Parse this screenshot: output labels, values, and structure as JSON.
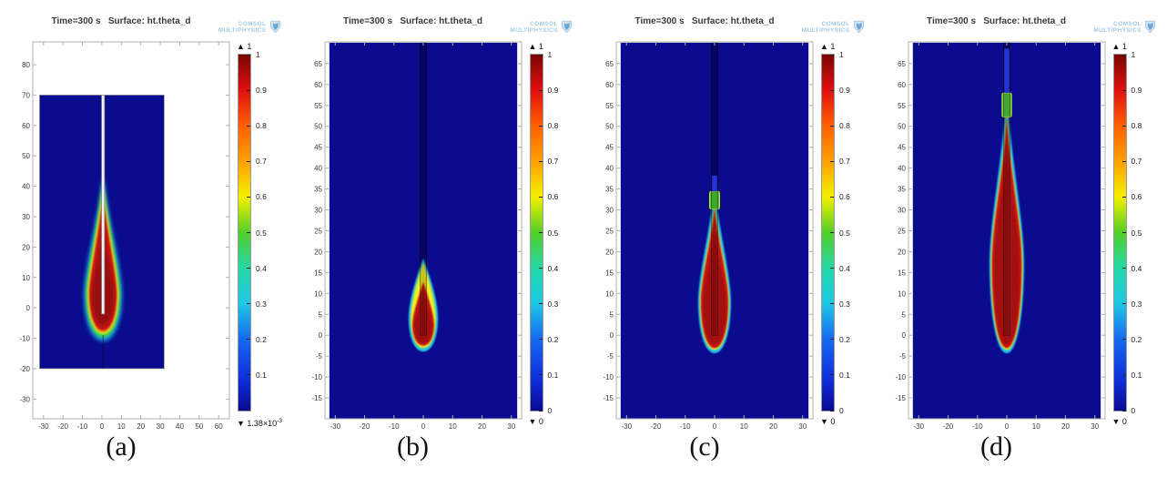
{
  "logo": {
    "line1": "COMSOL",
    "line2": "MULTIPHYSICS"
  },
  "colors": {
    "domain_blue": "#0a0b8e",
    "frame": "#b0b0b0",
    "tick_text": "#3a3a3a",
    "logo_blue": "#a6cbe4",
    "needle_gray": "#f2f2f2",
    "jet_stops": [
      [
        "0%",
        "#7a0403"
      ],
      [
        "10%",
        "#e01010"
      ],
      [
        "20%",
        "#ff6000"
      ],
      [
        "30%",
        "#ffa000"
      ],
      [
        "40%",
        "#f4f000"
      ],
      [
        "50%",
        "#52cf28"
      ],
      [
        "60%",
        "#22d8a8"
      ],
      [
        "70%",
        "#1ec8e6"
      ],
      [
        "80%",
        "#1668f0"
      ],
      [
        "92%",
        "#0e2ad8"
      ],
      [
        "100%",
        "#0a0b8e"
      ]
    ]
  },
  "chart_data": [
    {
      "type": "heatmap",
      "id": "a",
      "caption": "(a)",
      "title": "Time=300 s   Surface: ht.theta_d",
      "xlim": [
        -35.5,
        65.5
      ],
      "ylim": [
        -36.5,
        87.5
      ],
      "xticks": [
        -30,
        -20,
        -10,
        0,
        10,
        20,
        30,
        40,
        50,
        60
      ],
      "yticks": [
        80,
        70,
        60,
        50,
        40,
        30,
        20,
        10,
        0,
        -10,
        -20,
        -30
      ],
      "domain": {
        "x": [
          -32,
          32
        ],
        "y": [
          -20,
          70
        ]
      },
      "domain_stroke": true,
      "plume_cx": 0.6,
      "needle": {
        "style": "rod",
        "x": 0.6,
        "w": 1.5,
        "y_top": 70,
        "y_bottom": -2
      },
      "axis_line": {
        "x": 0.6,
        "y1": -9,
        "y2": -20
      },
      "plume_layers": [
        {
          "color": "#1ab5e8",
          "tip": 44.0,
          "bottom": -11.0,
          "r": 9.8,
          "y_rmax": 4.5,
          "blur": "L",
          "k": 0.3,
          "opacity": 0.9
        },
        {
          "color": "#35d23c",
          "tip": 42.0,
          "bottom": -9.6,
          "r": 8.7,
          "y_rmax": 4.5,
          "blur": "M",
          "k": 0.3,
          "opacity": 1
        },
        {
          "color": "#f2ee20",
          "tip": 40.2,
          "bottom": -8.6,
          "r": 7.9,
          "y_rmax": 4.5,
          "blur": "M",
          "k": 0.3,
          "opacity": 1
        },
        {
          "color": "#f08018",
          "tip": 38.6,
          "bottom": -8.0,
          "r": 7.4,
          "y_rmax": 4.5,
          "blur": "S",
          "k": 0.3,
          "opacity": 1
        },
        {
          "color": "#c41616",
          "tip": 36.8,
          "bottom": -7.4,
          "r": 6.9,
          "y_rmax": 4.5,
          "blur": "S",
          "k": 0.3,
          "opacity": 1
        },
        {
          "color": "#900c0c",
          "tip": 27.0,
          "bottom": -5.8,
          "r": 5.5,
          "y_rmax": 4.0,
          "blur": "M",
          "k": 0.3,
          "opacity": 0.85
        }
      ],
      "colorbar": {
        "max_label": "▲ 1",
        "min_label": "▼ 1.38×10",
        "min_exp": "-3",
        "tick_labels": [
          "1",
          "0.9",
          "0.8",
          "0.7",
          "0.6",
          "0.5",
          "0.4",
          "0.3",
          "0.2",
          "0.1"
        ]
      }
    },
    {
      "type": "heatmap",
      "id": "b",
      "caption": "(b)",
      "title": "Time=300 s   Surface: ht.theta_d",
      "xlim": [
        -33.5,
        33.5
      ],
      "ylim": [
        -20,
        70.2
      ],
      "xticks": [
        -30,
        -20,
        -10,
        0,
        10,
        20,
        30
      ],
      "yticks": [
        65,
        60,
        55,
        50,
        45,
        40,
        35,
        30,
        25,
        20,
        15,
        10,
        5,
        0,
        -5,
        -10,
        -15
      ],
      "domain": {
        "x": [
          -32,
          32
        ],
        "y": [
          -20,
          70
        ]
      },
      "domain_stroke": false,
      "plume_cx": 0,
      "needle": {
        "style": "outline",
        "x": 0,
        "w": 2.2,
        "y_top": 70,
        "y_bottom": 0,
        "dark_to": 20
      },
      "plume_layers": [
        {
          "color": "#23c3e6",
          "tip": 18.4,
          "bottom": -3.9,
          "r": 5.0,
          "y_rmax": 4.0,
          "blur": "S",
          "k": 0.6,
          "opacity": 1
        },
        {
          "color": "#cbe62a",
          "tip": 17.4,
          "bottom": -3.1,
          "r": 4.3,
          "y_rmax": 4.0,
          "blur": "S",
          "k": 0.62,
          "opacity": 1
        },
        {
          "color": "#f2ee20",
          "tip": 16.9,
          "bottom": -2.8,
          "r": 4.0,
          "y_rmax": 3.5,
          "blur": "S",
          "k": 0.62,
          "opacity": 1
        },
        {
          "color": "#c41616",
          "tip": 12.8,
          "bottom": -2.5,
          "r": 3.7,
          "y_rmax": 2.5,
          "blur": "S",
          "k": 0.5,
          "opacity": 1
        },
        {
          "color": "#9b0d0d",
          "tip": 10.5,
          "bottom": -1.8,
          "r": 3.0,
          "y_rmax": 2.0,
          "blur": "S",
          "k": 0.5,
          "opacity": 0.8
        }
      ],
      "colorbar": {
        "max_label": "▲ 1",
        "min_label": "▼ 0",
        "min_exp": "",
        "tick_labels": [
          "1",
          "0.9",
          "0.8",
          "0.7",
          "0.6",
          "0.5",
          "0.4",
          "0.3",
          "0.2",
          "0.1",
          "0"
        ]
      }
    },
    {
      "type": "heatmap",
      "id": "c",
      "caption": "(c)",
      "title": "Time=300 s   Surface: ht.theta_d",
      "xlim": [
        -33.5,
        33.5
      ],
      "ylim": [
        -20,
        70.2
      ],
      "xticks": [
        -30,
        -20,
        -10,
        0,
        10,
        20,
        30
      ],
      "yticks": [
        65,
        60,
        55,
        50,
        45,
        40,
        35,
        30,
        25,
        20,
        15,
        10,
        5,
        0,
        -5,
        -10,
        -15
      ],
      "domain": {
        "x": [
          -32,
          32
        ],
        "y": [
          -20,
          70
        ]
      },
      "domain_stroke": false,
      "plume_cx": 0,
      "needle": {
        "style": "outline",
        "x": 0,
        "w": 2.2,
        "y_top": 70,
        "y_bottom": 0,
        "dark_to": 38.2
      },
      "cap": {
        "x": 0,
        "w": 3.4,
        "y1": 30.2,
        "y2": 34.4,
        "color": "#4ecb3a",
        "edge": "#c8e82a"
      },
      "slot": {
        "w": 1.7,
        "y1": 34.4,
        "y2": 38.2,
        "color": "#2333e0"
      },
      "plume_layers": [
        {
          "color": "#23c3e6",
          "tip": 35.2,
          "bottom": -4.3,
          "r": 5.6,
          "y_rmax": 8.0,
          "blur": "S",
          "k": 0.32,
          "opacity": 1
        },
        {
          "color": "#f2ee20",
          "tip": 31.4,
          "bottom": -3.5,
          "r": 5.0,
          "y_rmax": 8.0,
          "blur": "S",
          "k": 0.3,
          "opacity": 1
        },
        {
          "color": "#c41616",
          "tip": 30.4,
          "bottom": -3.1,
          "r": 4.7,
          "y_rmax": 8.0,
          "blur": "S",
          "k": 0.3,
          "opacity": 1
        },
        {
          "color": "#9b0d0d",
          "tip": 25.0,
          "bottom": -2.2,
          "r": 4.0,
          "y_rmax": 7.0,
          "blur": "S",
          "k": 0.3,
          "opacity": 0.75
        }
      ],
      "colorbar": {
        "max_label": "▲ 1",
        "min_label": "▼ 0",
        "min_exp": "",
        "tick_labels": [
          "1",
          "0.9",
          "0.8",
          "0.7",
          "0.6",
          "0.5",
          "0.4",
          "0.3",
          "0.2",
          "0.1",
          "0"
        ]
      }
    },
    {
      "type": "heatmap",
      "id": "d",
      "caption": "(d)",
      "title": "Time=300 s   Surface: ht.theta_d",
      "xlim": [
        -33.5,
        33.5
      ],
      "ylim": [
        -20,
        70.2
      ],
      "xticks": [
        -30,
        -20,
        -10,
        0,
        10,
        20,
        30
      ],
      "yticks": [
        65,
        60,
        55,
        50,
        45,
        40,
        35,
        30,
        25,
        20,
        15,
        10,
        5,
        0,
        -5,
        -10,
        -15
      ],
      "domain": {
        "x": [
          -32,
          32
        ],
        "y": [
          -20,
          70
        ]
      },
      "domain_stroke": false,
      "plume_cx": 0,
      "needle": {
        "style": "outline",
        "x": 0,
        "w": 2.2,
        "y_top": 70,
        "y_bottom": 0,
        "dark_to": 68.6
      },
      "cap": {
        "x": 0,
        "w": 3.2,
        "y1": 52.2,
        "y2": 58,
        "color": "#4ecb3a",
        "edge": "#c8e82a"
      },
      "slot": {
        "w": 1.7,
        "y1": 58,
        "y2": 68.6,
        "color": "#2333e0"
      },
      "plume_layers": [
        {
          "color": "#23c3e6",
          "tip": 58.6,
          "bottom": -4.3,
          "r": 5.9,
          "y_rmax": 17.0,
          "blur": "S",
          "k": 0.24,
          "opacity": 1
        },
        {
          "color": "#f2ee20",
          "tip": 53.2,
          "bottom": -3.5,
          "r": 5.4,
          "y_rmax": 17.0,
          "blur": "S",
          "k": 0.22,
          "opacity": 1
        },
        {
          "color": "#c41616",
          "tip": 52.4,
          "bottom": -3.1,
          "r": 5.1,
          "y_rmax": 17.0,
          "blur": "S",
          "k": 0.22,
          "opacity": 1
        },
        {
          "color": "#9b0d0d",
          "tip": 46.0,
          "bottom": -2.2,
          "r": 4.3,
          "y_rmax": 16.0,
          "blur": "S",
          "k": 0.22,
          "opacity": 0.75
        }
      ],
      "colorbar": {
        "max_label": "▲ 1",
        "min_label": "▼ 0",
        "min_exp": "",
        "tick_labels": [
          "1",
          "0.9",
          "0.8",
          "0.7",
          "0.6",
          "0.5",
          "0.4",
          "0.3",
          "0.2",
          "0.1",
          "0"
        ]
      }
    }
  ]
}
